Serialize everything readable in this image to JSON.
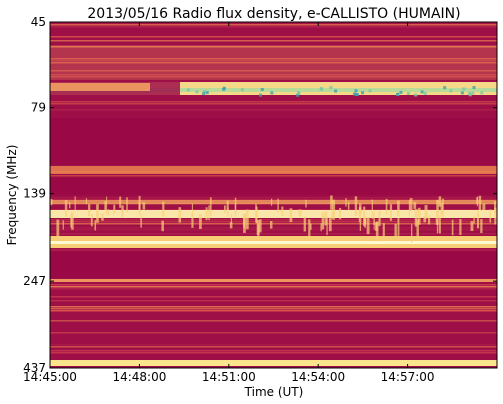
{
  "chart_data": {
    "type": "spectrogram",
    "title": "2013/05/16  Radio flux density, e-CALLISTO (HUMAIN)",
    "x_label": "Time (UT)",
    "y_label": "Frequency (MHz)",
    "xlim": [
      "14:45:00",
      "15:00:00"
    ],
    "xticks": [
      "14:45:00",
      "14:48:00",
      "14:51:00",
      "14:54:00",
      "14:57:00"
    ],
    "ylim": [
      45,
      437
    ],
    "yticks": [
      45,
      79,
      139,
      247,
      437
    ],
    "y_log_scale": true,
    "y_inverted": true
  }
}
